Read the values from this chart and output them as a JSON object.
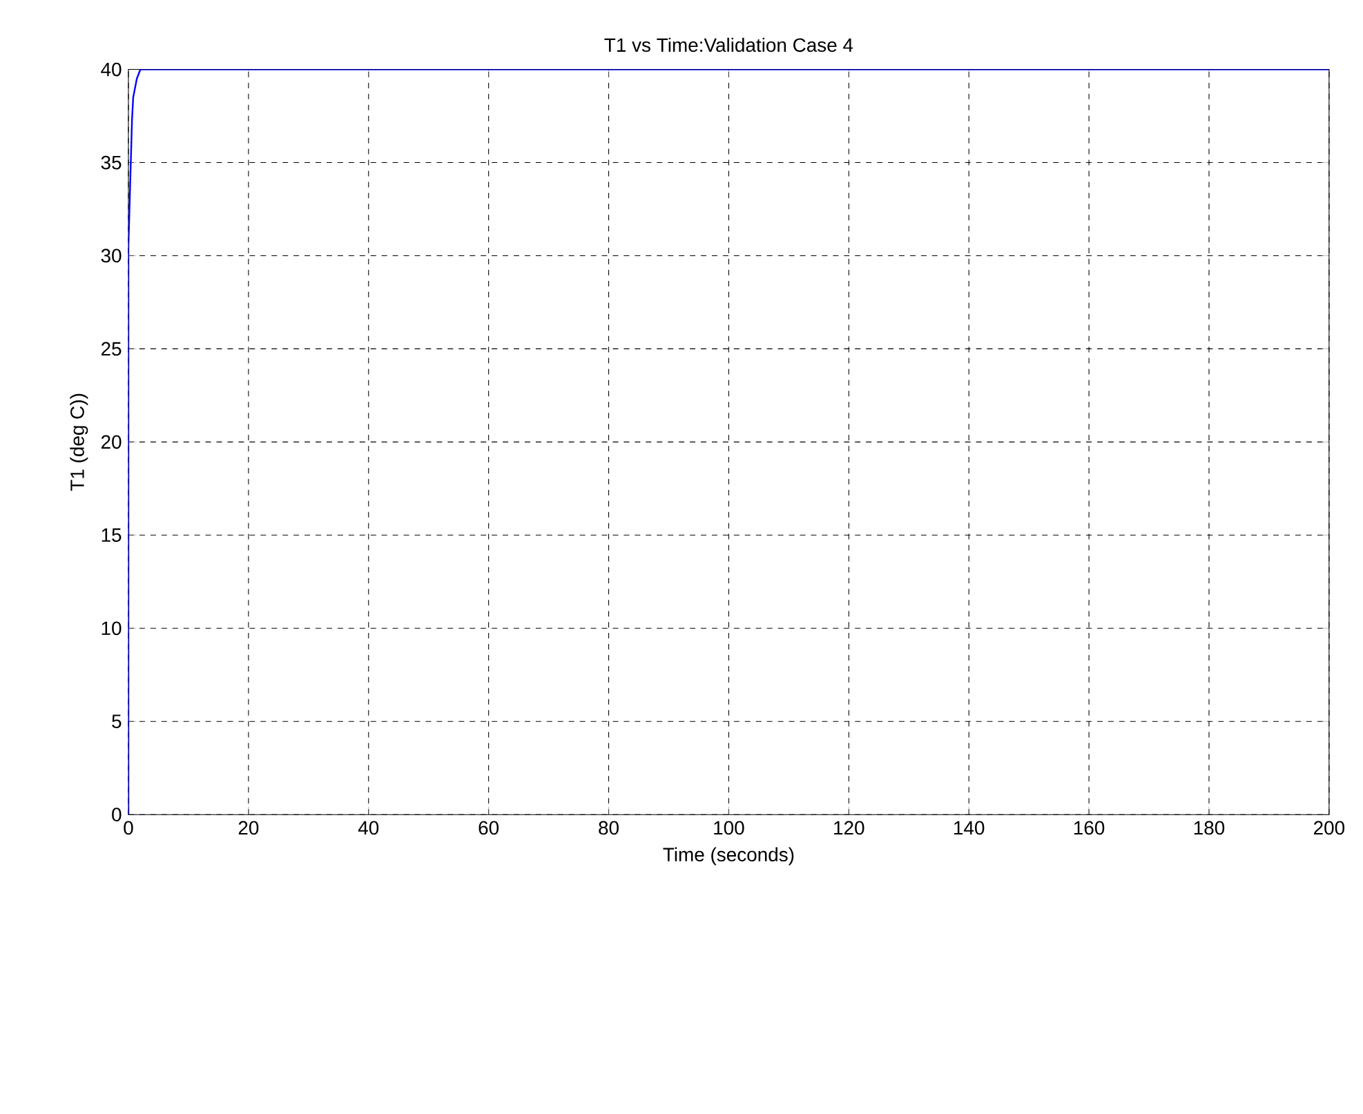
{
  "chart_data": {
    "type": "line",
    "title": "T1 vs Time:Validation Case 4",
    "xlabel": "Time (seconds)",
    "ylabel": "T1 (deg C))",
    "series": [
      {
        "color": "#0000ff",
        "x": [
          0,
          0,
          0.6,
          0.8,
          1.4,
          2,
          200
        ],
        "values": [
          0,
          30.5,
          37.3,
          38.5,
          39.5,
          40,
          40
        ]
      }
    ],
    "xlim": [
      0,
      200
    ],
    "ylim": [
      0,
      40
    ],
    "xticks": [
      0,
      20,
      40,
      60,
      80,
      100,
      120,
      140,
      160,
      180,
      200
    ],
    "yticks": [
      0,
      5,
      10,
      15,
      20,
      25,
      30,
      35,
      40
    ],
    "grid": true,
    "line_style": "solid",
    "marker": "none"
  }
}
